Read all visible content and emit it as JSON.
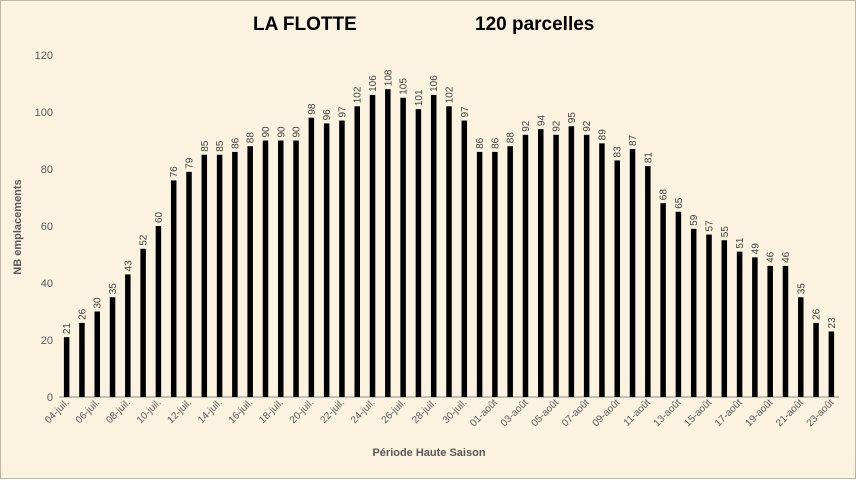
{
  "chart_data": {
    "type": "bar",
    "title": "LA FLOTTE",
    "subtitle": "120 parcelles",
    "xlabel": "Période Haute Saison",
    "ylabel": "NB emplacements",
    "ylim": [
      0,
      120
    ],
    "yticks": [
      0,
      20,
      40,
      60,
      80,
      100,
      120
    ],
    "grid": false,
    "legend": "none",
    "bar_color": "#000000",
    "categories": [
      "04-juil.",
      "05-juil.",
      "06-juil.",
      "07-juil.",
      "08-juil.",
      "09-juil.",
      "10-juil.",
      "11-juil.",
      "12-juil.",
      "13-juil.",
      "14-juil.",
      "15-juil.",
      "16-juil.",
      "17-juil.",
      "18-juil.",
      "19-juil.",
      "20-juil.",
      "21-juil.",
      "22-juil.",
      "23-juil.",
      "24-juil.",
      "25-juil.",
      "26-juil.",
      "27-juil.",
      "28-juil.",
      "29-juil.",
      "30-juil.",
      "31-juil.",
      "01-août",
      "02-août",
      "03-août",
      "04-août",
      "05-août",
      "06-août",
      "07-août",
      "08-août",
      "09-août",
      "10-août",
      "11-août",
      "12-août",
      "13-août",
      "14-août",
      "15-août",
      "16-août",
      "17-août",
      "18-août",
      "19-août",
      "20-août",
      "21-août",
      "22-août",
      "23-août"
    ],
    "tick_labels_shown": [
      "04-juil.",
      "06-juil.",
      "08-juil.",
      "10-juil.",
      "12-juil.",
      "14-juil.",
      "16-juil.",
      "18-juil.",
      "20-juil.",
      "22-juil.",
      "24-juil.",
      "26-juil.",
      "28-juil.",
      "30-juil.",
      "01-août",
      "03-août",
      "05-août",
      "07-août",
      "09-août",
      "11-août",
      "13-août",
      "15-août",
      "17-août",
      "19-août",
      "21-août",
      "23-août"
    ],
    "values": [
      21,
      26,
      30,
      35,
      43,
      52,
      60,
      76,
      79,
      85,
      85,
      86,
      88,
      90,
      90,
      90,
      98,
      96,
      97,
      102,
      106,
      108,
      105,
      101,
      106,
      102,
      97,
      86,
      86,
      88,
      92,
      94,
      92,
      95,
      92,
      89,
      83,
      87,
      81,
      68,
      65,
      59,
      57,
      55,
      51,
      49,
      46,
      46,
      35,
      26,
      23
    ]
  }
}
